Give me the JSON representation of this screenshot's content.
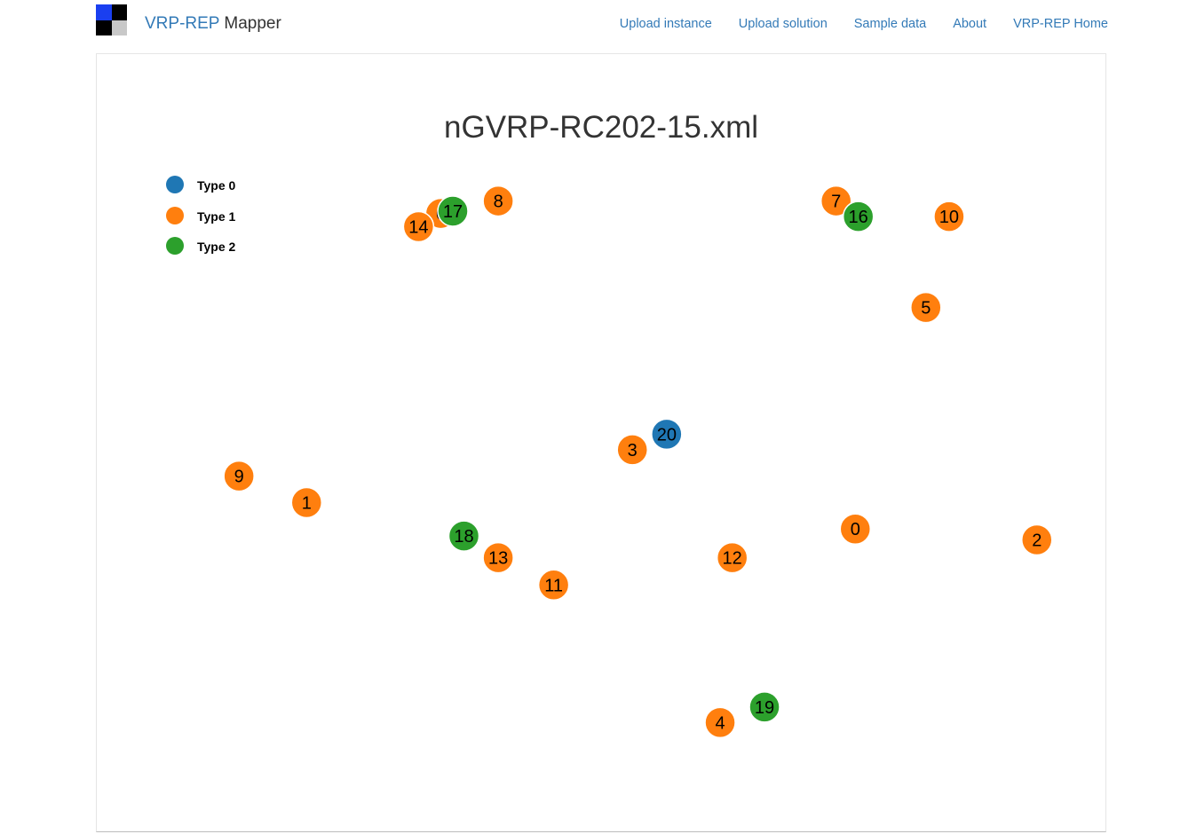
{
  "header": {
    "brand_primary": "VRP-REP",
    "brand_secondary": "Mapper",
    "nav": [
      {
        "label": "Upload instance"
      },
      {
        "label": "Upload solution"
      },
      {
        "label": "Sample data"
      },
      {
        "label": "About"
      },
      {
        "label": "VRP-REP Home"
      }
    ],
    "logo_colors": [
      "#1a3ff0",
      "#000000",
      "#000000",
      "#c8c8c8"
    ]
  },
  "map": {
    "title": "nGVRP-RC202-15.xml",
    "legend": [
      {
        "label": "Type 0",
        "color": "#1f77b4"
      },
      {
        "label": "Type 1",
        "color": "#ff7f0e"
      },
      {
        "label": "Type 2",
        "color": "#2ca02c"
      }
    ]
  },
  "chart_data": {
    "type": "scatter",
    "title": "nGVRP-RC202-15.xml",
    "legend_placement": "top-left",
    "grid": false,
    "series": [
      {
        "name": "Type 0",
        "color": "#1f77b4"
      },
      {
        "name": "Type 1",
        "color": "#ff7f0e"
      },
      {
        "name": "Type 2",
        "color": "#2ca02c"
      }
    ],
    "nodes": [
      {
        "id": "0",
        "type": 1,
        "x": 0.752,
        "y": 0.389
      },
      {
        "id": "1",
        "type": 1,
        "x": 0.208,
        "y": 0.423
      },
      {
        "id": "2",
        "type": 1,
        "x": 0.932,
        "y": 0.375
      },
      {
        "id": "3",
        "type": 1,
        "x": 0.531,
        "y": 0.491
      },
      {
        "id": "4",
        "type": 1,
        "x": 0.618,
        "y": 0.14
      },
      {
        "id": "5",
        "type": 1,
        "x": 0.822,
        "y": 0.674
      },
      {
        "id": "6",
        "type": 1,
        "x": 0.341,
        "y": 0.795
      },
      {
        "id": "7",
        "type": 1,
        "x": 0.733,
        "y": 0.811
      },
      {
        "id": "8",
        "type": 1,
        "x": 0.398,
        "y": 0.811
      },
      {
        "id": "9",
        "type": 1,
        "x": 0.141,
        "y": 0.457
      },
      {
        "id": "10",
        "type": 1,
        "x": 0.845,
        "y": 0.791
      },
      {
        "id": "11",
        "type": 1,
        "x": 0.453,
        "y": 0.317
      },
      {
        "id": "12",
        "type": 1,
        "x": 0.63,
        "y": 0.352
      },
      {
        "id": "13",
        "type": 1,
        "x": 0.398,
        "y": 0.352
      },
      {
        "id": "14",
        "type": 1,
        "x": 0.319,
        "y": 0.778
      },
      {
        "id": "16",
        "type": 2,
        "x": 0.755,
        "y": 0.791
      },
      {
        "id": "17",
        "type": 2,
        "x": 0.353,
        "y": 0.798
      },
      {
        "id": "18",
        "type": 2,
        "x": 0.364,
        "y": 0.38
      },
      {
        "id": "19",
        "type": 2,
        "x": 0.662,
        "y": 0.16
      },
      {
        "id": "20",
        "type": 0,
        "x": 0.565,
        "y": 0.511
      }
    ]
  }
}
